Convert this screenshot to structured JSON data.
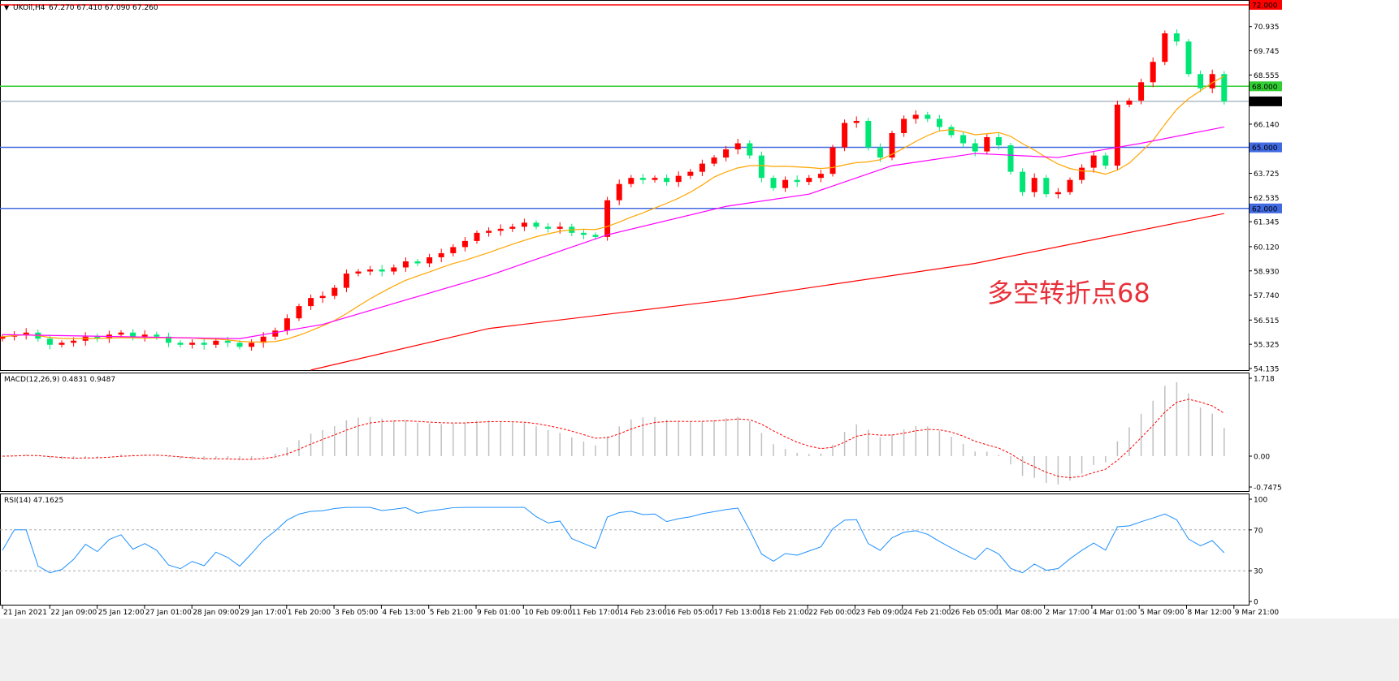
{
  "header": {
    "symbol_label": "UKOil,H4",
    "ohlc": "67.270 67.410 67.090 67.260"
  },
  "annotation": "多空转折点68",
  "colors": {
    "bull": "#ff0000",
    "bear": "#00e676",
    "ma_fast": "#ffa500",
    "ma_mid": "#ff00ff",
    "ma_slow": "#ff0000",
    "rsi": "#1e90ff",
    "macd_hist": "#c0c0c0",
    "macd_signal": "#ff0000"
  },
  "levels": [
    {
      "value": 72.0,
      "label": "72.000",
      "color": "#ff0000"
    },
    {
      "value": 68.0,
      "label": "68.000",
      "color": "#32cd32"
    },
    {
      "value": 67.26,
      "label": "67.260",
      "color": "#000000",
      "line": "#8899aa"
    },
    {
      "value": 65.0,
      "label": "65.000",
      "color": "#4169e1"
    },
    {
      "value": 62.0,
      "label": "62.000",
      "color": "#4169e1"
    }
  ],
  "chart_data": [
    {
      "type": "candlestick",
      "ylim": [
        54.135,
        72.0
      ],
      "yticks": [
        "70.935",
        "69.745",
        "68.555",
        "66.140",
        "63.725",
        "62.535",
        "61.345",
        "60.120",
        "58.930",
        "57.740",
        "56.515",
        "55.325",
        "54.135"
      ],
      "closes": [
        55.7,
        55.8,
        55.9,
        55.6,
        55.3,
        55.4,
        55.5,
        55.7,
        55.6,
        55.8,
        55.9,
        55.7,
        55.8,
        55.7,
        55.4,
        55.3,
        55.4,
        55.3,
        55.5,
        55.4,
        55.2,
        55.4,
        55.7,
        56.0,
        56.6,
        57.2,
        57.6,
        57.7,
        58.1,
        58.8,
        58.9,
        59.0,
        58.9,
        59.1,
        59.4,
        59.3,
        59.6,
        59.8,
        60.1,
        60.4,
        60.8,
        60.9,
        61.0,
        61.1,
        61.3,
        61.1,
        61.0,
        61.1,
        60.8,
        60.7,
        60.6,
        62.4,
        63.2,
        63.5,
        63.4,
        63.5,
        63.3,
        63.6,
        63.8,
        64.2,
        64.5,
        64.9,
        65.2,
        64.6,
        63.5,
        63.0,
        63.4,
        63.3,
        63.5,
        63.7,
        65.0,
        66.2,
        66.3,
        65.0,
        64.5,
        65.7,
        66.4,
        66.6,
        66.4,
        66.0,
        65.6,
        65.2,
        64.8,
        65.5,
        65.1,
        63.8,
        62.8,
        63.5,
        62.7,
        62.8,
        63.4,
        64.0,
        64.6,
        64.1,
        67.1,
        67.3,
        68.2,
        69.2,
        70.6,
        70.2,
        68.6,
        67.9,
        68.6,
        67.26
      ],
      "ma_mid": [
        [
          0,
          55.8
        ],
        [
          20,
          55.6
        ],
        [
          27,
          56.3
        ],
        [
          41,
          58.7
        ],
        [
          51,
          60.7
        ],
        [
          61,
          62.1
        ],
        [
          68,
          62.7
        ],
        [
          75,
          64.1
        ],
        [
          82,
          64.7
        ],
        [
          89,
          64.5
        ],
        [
          96,
          65.2
        ],
        [
          103,
          66.0
        ]
      ],
      "ma_slow": [
        [
          26,
          54.06
        ],
        [
          41,
          56.1
        ],
        [
          61,
          57.5
        ],
        [
          82,
          59.3
        ],
        [
          103,
          61.75
        ]
      ]
    },
    {
      "type": "bar+line",
      "title": "MACD(12,26,9) 0.4831 0.9487",
      "yticks": [
        "1.718",
        "0.00",
        "-0.7475"
      ],
      "ylim": [
        -0.7475,
        1.718
      ]
    },
    {
      "type": "line",
      "title": "RSI(14) 47.1625",
      "yticks": [
        "100",
        "70",
        "30",
        "0"
      ],
      "ylim": [
        0,
        100
      ],
      "levels": [
        70,
        30
      ]
    }
  ],
  "time_axis": [
    "21 Jan 2021",
    "22 Jan 09:00",
    "25 Jan 12:00",
    "27 Jan 01:00",
    "28 Jan 09:00",
    "29 Jan 17:00",
    "1 Feb 20:00",
    "3 Feb 05:00",
    "4 Feb 13:00",
    "5 Feb 21:00",
    "9 Feb 01:00",
    "10 Feb 09:00",
    "11 Feb 17:00",
    "14 Feb 23:00",
    "16 Feb 05:00",
    "17 Feb 13:00",
    "18 Feb 21:00",
    "22 Feb 00:00",
    "23 Feb 09:00",
    "24 Feb 21:00",
    "26 Feb 05:00",
    "1 Mar 08:00",
    "2 Mar 17:00",
    "4 Mar 01:00",
    "5 Mar 09:00",
    "8 Mar 12:00",
    "9 Mar 21:00"
  ]
}
